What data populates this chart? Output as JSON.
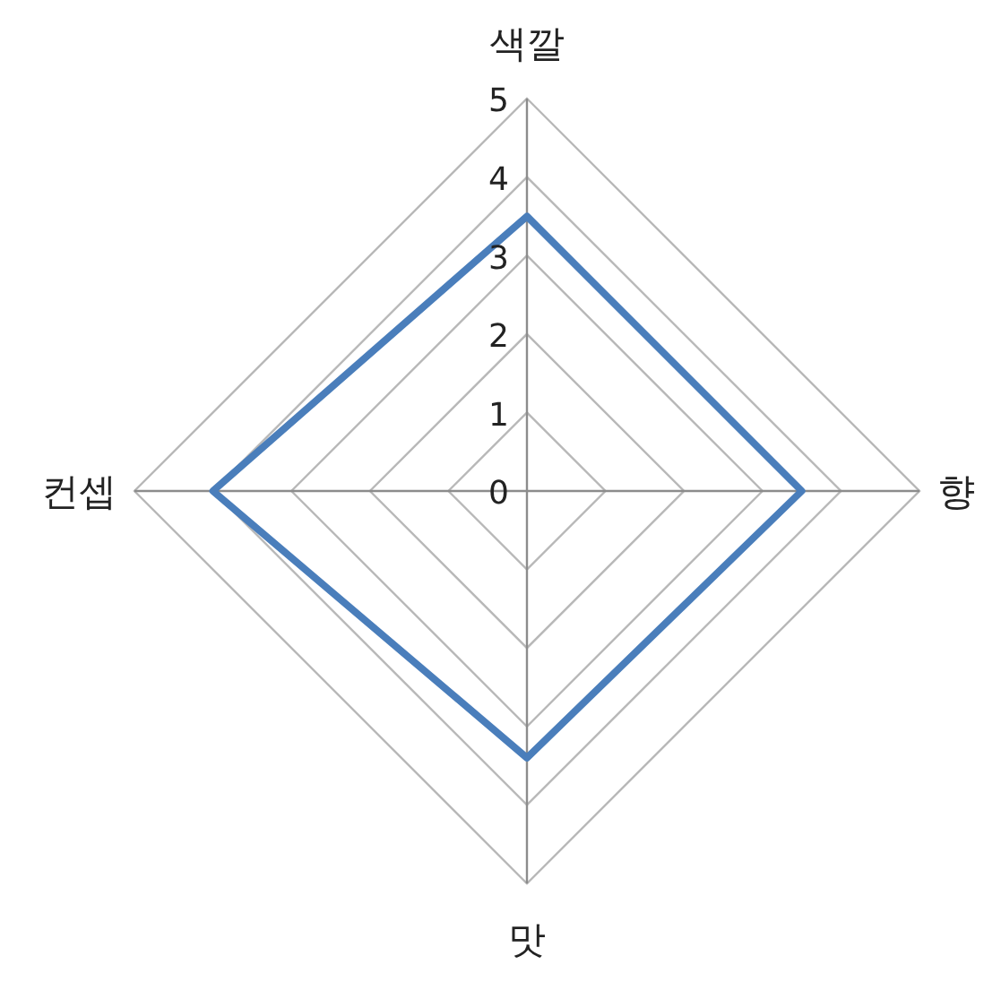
{
  "chart_data": {
    "type": "radar",
    "categories": [
      "색깔",
      "향",
      "맛",
      "컨셉"
    ],
    "series": [
      {
        "color": "#4a7ebb",
        "values": [
          3.5,
          3.5,
          3.4,
          4.0
        ]
      }
    ],
    "ylim": [
      0,
      5
    ],
    "yticks": [
      0,
      1,
      2,
      3,
      4,
      5
    ],
    "grid": true
  }
}
